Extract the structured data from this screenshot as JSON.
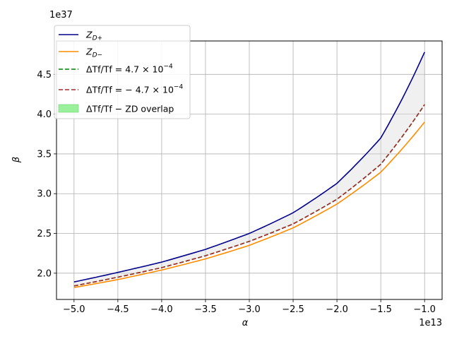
{
  "chart_data": {
    "type": "line",
    "xlabel": "α",
    "ylabel": "β",
    "x_offset_label": "1e13",
    "y_offset_label": "1e37",
    "xlim": [
      -5.2,
      -0.8
    ],
    "ylim": [
      1.67,
      4.92
    ],
    "x_ticks": [
      -5.0,
      -4.5,
      -4.0,
      -3.5,
      -3.0,
      -2.5,
      -2.0,
      -1.5,
      -1.0
    ],
    "x_tick_labels": [
      "−5.0",
      "−4.5",
      "−4.0",
      "−3.5",
      "−3.0",
      "−2.5",
      "−2.0",
      "−1.5",
      "−1.0"
    ],
    "y_ticks": [
      2.0,
      2.5,
      3.0,
      3.5,
      4.0,
      4.5
    ],
    "y_tick_labels": [
      "2.0",
      "2.5",
      "3.0",
      "3.5",
      "4.0",
      "4.5"
    ],
    "grid": true,
    "legend_position": "top-left",
    "x": [
      -5.0,
      -4.5,
      -4.0,
      -3.5,
      -3.0,
      -2.5,
      -2.0,
      -1.5,
      -1.0
    ],
    "series": [
      {
        "name": "Z_{D+}",
        "label_main": "Z",
        "label_sub": "D+",
        "color": "#00008b",
        "style": "solid",
        "values": [
          1.89,
          2.01,
          2.14,
          2.3,
          2.5,
          2.76,
          3.13,
          3.7,
          4.78
        ]
      },
      {
        "name": "Z_{D−}",
        "label_main": "Z",
        "label_sub": "D−",
        "color": "#ff8c00",
        "style": "solid",
        "values": [
          1.82,
          1.92,
          2.04,
          2.18,
          2.35,
          2.57,
          2.87,
          3.27,
          3.9
        ]
      },
      {
        "name": "ΔT_f/T_f = 4.7×10^-4",
        "label_text": "ΔTf/Tf = 4.7 × 10",
        "label_exp": "−4",
        "color": "#008000",
        "style": "dashed",
        "values": [
          1.84,
          1.95,
          2.07,
          2.22,
          2.4,
          2.62,
          2.93,
          3.37,
          4.12
        ]
      },
      {
        "name": "ΔT_f/T_f = −4.7×10^-4",
        "label_text": "ΔTf/Tf = − 4.7 × 10",
        "label_exp": "−4",
        "color": "#a52a2a",
        "style": "dashed",
        "values": [
          1.84,
          1.95,
          2.07,
          2.22,
          2.4,
          2.62,
          2.93,
          3.37,
          4.12
        ]
      }
    ],
    "band": {
      "name": "ΔT_f/T_f − Z_D overlap",
      "label_text": "ΔTf/Tf − ZD overlap",
      "color": "#90ee90"
    }
  }
}
